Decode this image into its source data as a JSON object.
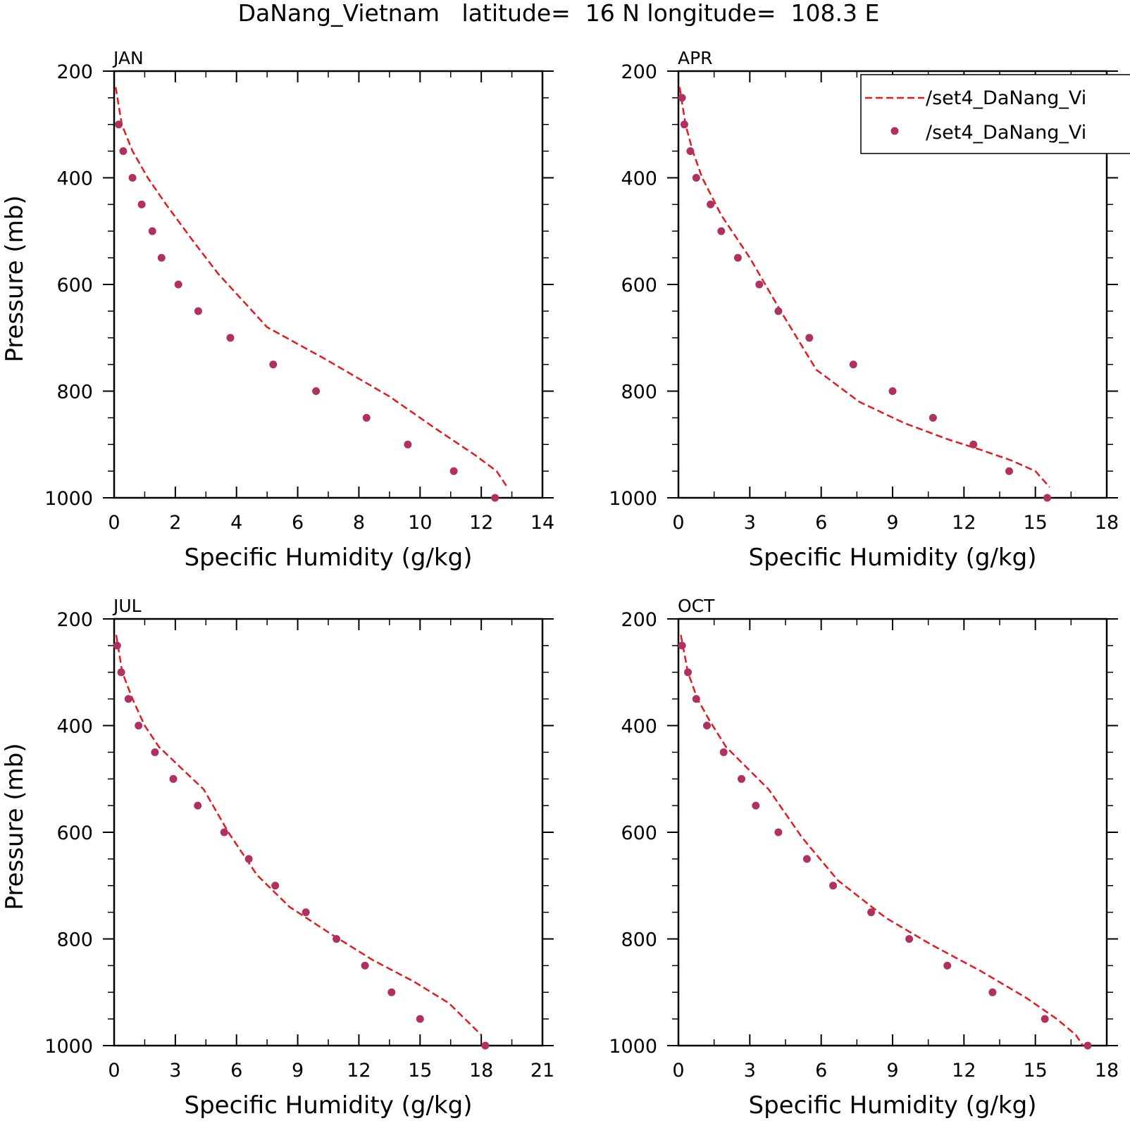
{
  "figure": {
    "title": "DaNang_Vietnam   latitude=  16 N longitude=  108.3 E"
  },
  "legend": {
    "entries": [
      {
        "label": "/set4_DaNang_Vi",
        "style": "dashed-line",
        "color": "#e41a1c"
      },
      {
        "label": "/set4_DaNang_Vi",
        "style": "dot",
        "color": "#b03060"
      }
    ]
  },
  "colors": {
    "line": "#e41a1c",
    "marker": "#b03060",
    "axes": "#000000",
    "background": "#ffffff"
  },
  "chart_data": [
    {
      "type": "line",
      "title": "JAN",
      "xlabel": "Specific Humidity (g/kg)",
      "ylabel": "Pressure (mb)",
      "xlim": [
        0,
        14
      ],
      "ylim": [
        1000,
        200
      ],
      "y_inverted": true,
      "xticks": [
        0,
        2,
        4,
        6,
        8,
        10,
        12,
        14
      ],
      "yticks": [
        200,
        400,
        600,
        800,
        1000
      ],
      "grid": false,
      "series": [
        {
          "style": "dashed-line",
          "x": [
            0.05,
            0.25,
            0.6,
            1.1,
            1.7,
            2.6,
            3.4,
            5.0,
            6.9,
            9.0,
            10.5,
            11.8,
            12.5,
            12.85
          ],
          "y": [
            230,
            300,
            350,
            400,
            450,
            520,
            580,
            680,
            740,
            810,
            870,
            920,
            950,
            980
          ]
        },
        {
          "style": "dot",
          "x": [
            0.15,
            0.3,
            0.6,
            0.9,
            1.25,
            1.55,
            2.1,
            2.75,
            3.8,
            5.2,
            6.6,
            8.25,
            9.6,
            11.1,
            12.45
          ],
          "y": [
            300,
            350,
            400,
            450,
            500,
            550,
            600,
            650,
            700,
            750,
            800,
            850,
            900,
            950,
            1000
          ]
        }
      ]
    },
    {
      "type": "line",
      "title": "APR",
      "xlabel": "Specific Humidity (g/kg)",
      "ylabel": "",
      "xlim": [
        0,
        18
      ],
      "ylim": [
        1000,
        200
      ],
      "y_inverted": true,
      "xticks": [
        0,
        3,
        6,
        9,
        12,
        15,
        18
      ],
      "yticks": [
        200,
        400,
        600,
        800,
        1000
      ],
      "grid": false,
      "series": [
        {
          "style": "dashed-line",
          "x": [
            0.05,
            0.3,
            0.6,
            1.0,
            1.8,
            3.0,
            4.3,
            5.8,
            7.6,
            9.5,
            11.3,
            12.7,
            14.0,
            15.0,
            15.6
          ],
          "y": [
            230,
            300,
            350,
            400,
            470,
            550,
            650,
            760,
            820,
            860,
            890,
            910,
            930,
            950,
            980
          ]
        },
        {
          "style": "dot",
          "x": [
            0.15,
            0.25,
            0.5,
            0.75,
            1.35,
            1.8,
            2.5,
            3.4,
            4.2,
            5.5,
            7.35,
            9.0,
            10.7,
            12.4,
            13.9,
            15.5
          ],
          "y": [
            250,
            300,
            350,
            400,
            450,
            500,
            550,
            600,
            650,
            700,
            750,
            800,
            850,
            900,
            950,
            1000
          ]
        }
      ]
    },
    {
      "type": "line",
      "title": "JUL",
      "xlabel": "Specific Humidity (g/kg)",
      "ylabel": "Pressure (mb)",
      "xlim": [
        0,
        21
      ],
      "ylim": [
        1000,
        200
      ],
      "y_inverted": true,
      "xticks": [
        0,
        3,
        6,
        9,
        12,
        15,
        18,
        21
      ],
      "yticks": [
        200,
        400,
        600,
        800,
        1000
      ],
      "grid": false,
      "series": [
        {
          "style": "dashed-line",
          "x": [
            0.1,
            0.4,
            0.9,
            1.5,
            2.2,
            3.3,
            4.4,
            5.6,
            7.0,
            8.6,
            10.6,
            12.7,
            14.7,
            16.4,
            17.2,
            18.0
          ],
          "y": [
            230,
            300,
            350,
            400,
            440,
            480,
            520,
            600,
            680,
            740,
            790,
            840,
            880,
            920,
            950,
            980
          ]
        },
        {
          "style": "dot",
          "x": [
            0.15,
            0.35,
            0.7,
            1.2,
            2.0,
            2.9,
            4.1,
            5.4,
            6.6,
            7.9,
            9.4,
            10.9,
            12.3,
            13.6,
            15.0,
            18.2
          ],
          "y": [
            250,
            300,
            350,
            400,
            450,
            500,
            550,
            600,
            650,
            700,
            750,
            800,
            850,
            900,
            950,
            1000
          ]
        }
      ]
    },
    {
      "type": "line",
      "title": "OCT",
      "xlabel": "Specific Humidity (g/kg)",
      "ylabel": "",
      "xlim": [
        0,
        18
      ],
      "ylim": [
        1000,
        200
      ],
      "y_inverted": true,
      "xticks": [
        0,
        3,
        6,
        9,
        12,
        15,
        18
      ],
      "yticks": [
        200,
        400,
        600,
        800,
        1000
      ],
      "grid": false,
      "series": [
        {
          "style": "dashed-line",
          "x": [
            0.1,
            0.4,
            0.8,
            1.3,
            2.0,
            2.9,
            3.8,
            5.2,
            6.7,
            8.7,
            10.6,
            12.7,
            14.6,
            15.9,
            16.7,
            17.0
          ],
          "y": [
            230,
            300,
            350,
            390,
            440,
            480,
            520,
            610,
            690,
            760,
            810,
            860,
            910,
            950,
            980,
            1000
          ]
        },
        {
          "style": "dot",
          "x": [
            0.15,
            0.4,
            0.75,
            1.2,
            1.9,
            2.65,
            3.25,
            4.2,
            5.4,
            6.5,
            8.1,
            9.7,
            11.3,
            13.2,
            15.4,
            17.2
          ],
          "y": [
            250,
            300,
            350,
            400,
            450,
            500,
            550,
            600,
            650,
            700,
            750,
            800,
            850,
            900,
            950,
            1000
          ]
        }
      ]
    }
  ]
}
